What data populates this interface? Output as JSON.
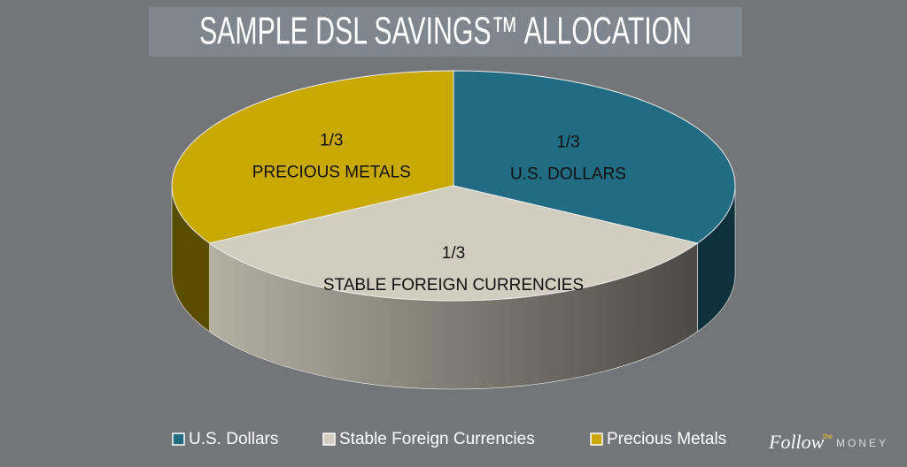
{
  "chart_data": {
    "type": "pie3d",
    "title": "SAMPLE DSL SAVINGS™ ALLOCATION",
    "categories": [
      "U.S. Dollars",
      "Stable Foreign Currencies",
      "Precious Metals"
    ],
    "slice_labels": [
      "U.S. DOLLARS",
      "STABLE FOREIGN CURRENCIES",
      "PRECIOUS METALS"
    ],
    "values": [
      0.333,
      0.333,
      0.333
    ],
    "value_labels": [
      "1/3",
      "1/3",
      "1/3"
    ],
    "colors": [
      "#216c82",
      "#d1cdbf",
      "#c9a800"
    ],
    "legend": "bottom"
  },
  "logo": {
    "word1": "Follow",
    "word2": "the",
    "word3": "MONEY"
  }
}
